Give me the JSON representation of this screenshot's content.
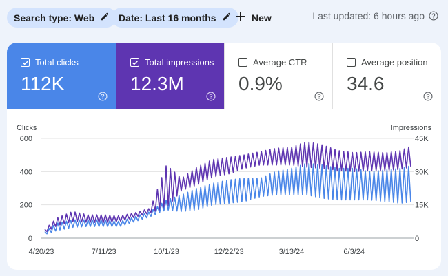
{
  "toolbar": {
    "search_type_label": "Search type: Web",
    "date_label": "Date: Last 16 months",
    "new_label": "New",
    "last_updated": "Last updated: 6 hours ago"
  },
  "metrics": [
    {
      "label": "Total clicks",
      "value": "112K",
      "checked": true,
      "color": "#4a86e8"
    },
    {
      "label": "Total impressions",
      "value": "12.3M",
      "checked": true,
      "color": "#5e35b1"
    },
    {
      "label": "Average CTR",
      "value": "0.9%",
      "checked": false
    },
    {
      "label": "Average position",
      "value": "34.6",
      "checked": false
    }
  ],
  "icons": {
    "edit": "pencil-icon",
    "add": "plus-icon",
    "help": "help-circle-icon",
    "checkbox": "checkbox-icon"
  },
  "chart_data": {
    "type": "line",
    "left_axis_title": "Clicks",
    "right_axis_title": "Impressions",
    "left_ticks": [
      "600",
      "400",
      "200",
      "0"
    ],
    "right_ticks": [
      "45K",
      "30K",
      "15K",
      "0"
    ],
    "ylim_left": [
      0,
      600
    ],
    "ylim_right": [
      0,
      45000
    ],
    "x_tick_labels": [
      "4/20/23",
      "7/11/23",
      "10/1/23",
      "12/22/23",
      "3/13/24",
      "6/3/24"
    ],
    "x_range": [
      "4/20/23",
      "8/20/24"
    ],
    "grid": true,
    "series": [
      {
        "name": "Clicks",
        "axis": "left",
        "color": "#4a86e8",
        "x": [
          "4/20/23",
          "5/10/23",
          "5/31/23",
          "6/20/23",
          "7/11/23",
          "8/1/23",
          "8/21/23",
          "9/10/23",
          "10/1/23",
          "10/21/23",
          "11/10/23",
          "12/1/23",
          "12/22/23",
          "1/11/24",
          "2/1/24",
          "2/21/24",
          "3/13/24",
          "4/2/24",
          "4/23/24",
          "5/13/24",
          "6/3/24",
          "6/23/24",
          "7/14/24",
          "8/3/24",
          "8/20/24"
        ],
        "low": [
          15,
          45,
          65,
          70,
          70,
          70,
          100,
          130,
          170,
          160,
          170,
          200,
          210,
          220,
          250,
          260,
          260,
          260,
          240,
          230,
          230,
          230,
          220,
          210,
          220
        ],
        "high": [
          25,
          90,
          110,
          110,
          110,
          100,
          130,
          160,
          230,
          260,
          300,
          330,
          350,
          360,
          360,
          400,
          420,
          450,
          440,
          420,
          420,
          400,
          410,
          420,
          440
        ]
      },
      {
        "name": "Impressions",
        "axis": "right",
        "color": "#5e35b1",
        "x": [
          "4/20/23",
          "5/10/23",
          "5/31/23",
          "6/20/23",
          "7/11/23",
          "8/1/23",
          "8/21/23",
          "9/10/23",
          "10/1/23",
          "10/21/23",
          "11/10/23",
          "12/1/23",
          "12/22/23",
          "1/11/24",
          "2/1/24",
          "2/21/24",
          "3/13/24",
          "4/2/24",
          "4/23/24",
          "5/13/24",
          "6/3/24",
          "6/23/24",
          "7/14/24",
          "8/3/24",
          "8/20/24"
        ],
        "low": [
          1500,
          5500,
          7500,
          7200,
          7000,
          7500,
          9500,
          11500,
          13500,
          21500,
          24000,
          27500,
          29000,
          31500,
          33000,
          33000,
          33000,
          32000,
          31500,
          30500,
          30000,
          30500,
          30500,
          31000,
          32500
        ],
        "high": [
          2500,
          9000,
          12000,
          10500,
          10500,
          10000,
          11500,
          13500,
          33000,
          27000,
          32000,
          35500,
          36500,
          37500,
          39000,
          40500,
          41000,
          43500,
          42000,
          39500,
          38500,
          39000,
          38500,
          39500,
          42000
        ]
      }
    ]
  }
}
